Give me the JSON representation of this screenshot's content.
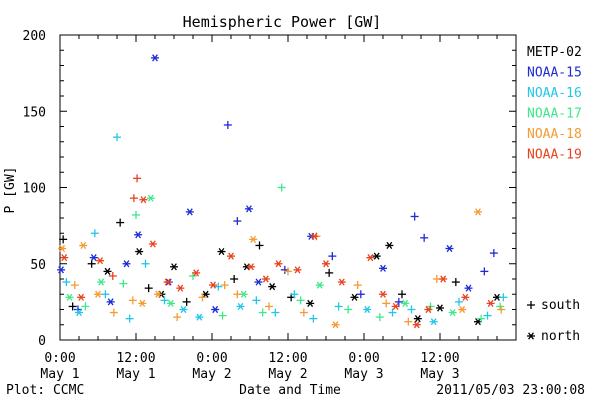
{
  "chart_data": {
    "type": "scatter",
    "title": "Hemispheric Power [GW]",
    "xlabel": "Date and Time",
    "ylabel": "P [GW]",
    "xlim": [
      "2011-05-01T00:00",
      "2011-05-04T00:00"
    ],
    "ylim": [
      0,
      200
    ],
    "yticks": [
      "0",
      "50",
      "100",
      "150",
      "200"
    ],
    "xticks": [
      {
        "time": "2011-05-01T00:00",
        "top": "0:00",
        "bottom": "May 1"
      },
      {
        "time": "2011-05-01T12:00",
        "top": "12:00",
        "bottom": "May 1"
      },
      {
        "time": "2011-05-02T00:00",
        "top": "0:00",
        "bottom": "May 2"
      },
      {
        "time": "2011-05-02T12:00",
        "top": "12:00",
        "bottom": "May 2"
      },
      {
        "time": "2011-05-03T00:00",
        "top": "0:00",
        "bottom": "May 3"
      },
      {
        "time": "2011-05-03T12:00",
        "top": "12:00",
        "bottom": "May 3"
      }
    ],
    "grid": false,
    "legend_position": "right",
    "marker_legend": [
      {
        "symbol": "+",
        "label": "south"
      },
      {
        "symbol": "*",
        "label": "north"
      }
    ],
    "series": [
      {
        "name": "METP-02",
        "color": "#000000",
        "points": [
          [
            "2011-05-01T00:30",
            66,
            "+"
          ],
          [
            "2011-05-01T02:00",
            22,
            "+"
          ],
          [
            "2011-05-01T05:00",
            50,
            "+"
          ],
          [
            "2011-05-01T07:30",
            45,
            "*"
          ],
          [
            "2011-05-01T09:30",
            77,
            "+"
          ],
          [
            "2011-05-01T12:30",
            58,
            "*"
          ],
          [
            "2011-05-01T14:00",
            34,
            "+"
          ],
          [
            "2011-05-01T16:00",
            30,
            "*"
          ],
          [
            "2011-05-01T18:00",
            48,
            "*"
          ],
          [
            "2011-05-01T20:00",
            25,
            "+"
          ],
          [
            "2011-05-01T23:00",
            30,
            "*"
          ],
          [
            "2011-05-02T01:30",
            58,
            "*"
          ],
          [
            "2011-05-02T03:30",
            40,
            "+"
          ],
          [
            "2011-05-02T05:30",
            48,
            "*"
          ],
          [
            "2011-05-02T07:30",
            62,
            "+"
          ],
          [
            "2011-05-02T09:30",
            35,
            "*"
          ],
          [
            "2011-05-02T12:30",
            28,
            "+"
          ],
          [
            "2011-05-02T15:30",
            24,
            "*"
          ],
          [
            "2011-05-02T18:30",
            44,
            "+"
          ],
          [
            "2011-05-02T22:30",
            28,
            "*"
          ],
          [
            "2011-05-03T02:00",
            55,
            "*"
          ],
          [
            "2011-05-03T04:00",
            62,
            "*"
          ],
          [
            "2011-05-03T06:00",
            30,
            "+"
          ],
          [
            "2011-05-03T08:30",
            14,
            "*"
          ],
          [
            "2011-05-03T12:00",
            21,
            "*"
          ],
          [
            "2011-05-03T14:30",
            38,
            "+"
          ],
          [
            "2011-05-03T18:00",
            12,
            "*"
          ],
          [
            "2011-05-03T21:00",
            28,
            "*"
          ]
        ]
      },
      {
        "name": "NOAA-15",
        "color": "#1c2bd6",
        "points": [
          [
            "2011-05-01T00:10",
            46,
            "*"
          ],
          [
            "2011-05-01T02:50",
            20,
            "+"
          ],
          [
            "2011-05-01T05:20",
            54,
            "*"
          ],
          [
            "2011-05-01T08:00",
            25,
            "*"
          ],
          [
            "2011-05-01T10:30",
            50,
            "*"
          ],
          [
            "2011-05-01T12:20",
            69,
            "*"
          ],
          [
            "2011-05-01T15:00",
            185,
            "*"
          ],
          [
            "2011-05-01T17:10",
            38,
            "*"
          ],
          [
            "2011-05-01T20:30",
            84,
            "*"
          ],
          [
            "2011-05-02T00:30",
            20,
            "*"
          ],
          [
            "2011-05-02T02:30",
            141,
            "+"
          ],
          [
            "2011-05-02T04:00",
            78,
            "+"
          ],
          [
            "2011-05-02T05:50",
            86,
            "*"
          ],
          [
            "2011-05-02T07:20",
            38,
            "*"
          ],
          [
            "2011-05-02T11:30",
            46,
            "+"
          ],
          [
            "2011-05-02T15:40",
            68,
            "*"
          ],
          [
            "2011-05-02T19:00",
            55,
            "+"
          ],
          [
            "2011-05-02T23:30",
            30,
            "+"
          ],
          [
            "2011-05-03T03:00",
            47,
            "*"
          ],
          [
            "2011-05-03T05:30",
            25,
            "+"
          ],
          [
            "2011-05-03T08:00",
            81,
            "+"
          ],
          [
            "2011-05-03T09:30",
            67,
            "+"
          ],
          [
            "2011-05-03T13:30",
            60,
            "*"
          ],
          [
            "2011-05-03T16:30",
            34,
            "*"
          ],
          [
            "2011-05-03T19:00",
            45,
            "+"
          ],
          [
            "2011-05-03T20:30",
            57,
            "+"
          ]
        ]
      },
      {
        "name": "NOAA-16",
        "color": "#22c6ea",
        "points": [
          [
            "2011-05-01T01:00",
            38,
            "+"
          ],
          [
            "2011-05-01T03:00",
            18,
            "*"
          ],
          [
            "2011-05-01T05:30",
            70,
            "+"
          ],
          [
            "2011-05-01T07:10",
            30,
            "+"
          ],
          [
            "2011-05-01T09:00",
            133,
            "+"
          ],
          [
            "2011-05-01T11:00",
            14,
            "+"
          ],
          [
            "2011-05-01T13:30",
            50,
            "+"
          ],
          [
            "2011-05-01T16:30",
            26,
            "+"
          ],
          [
            "2011-05-01T19:30",
            20,
            "*"
          ],
          [
            "2011-05-01T22:00",
            15,
            "*"
          ],
          [
            "2011-05-02T01:00",
            35,
            "+"
          ],
          [
            "2011-05-02T04:30",
            22,
            "*"
          ],
          [
            "2011-05-02T07:00",
            26,
            "+"
          ],
          [
            "2011-05-02T10:00",
            18,
            "+"
          ],
          [
            "2011-05-02T13:00",
            30,
            "+"
          ],
          [
            "2011-05-02T16:00",
            14,
            "+"
          ],
          [
            "2011-05-02T20:00",
            22,
            "+"
          ],
          [
            "2011-05-03T00:30",
            20,
            "*"
          ],
          [
            "2011-05-03T04:30",
            18,
            "+"
          ],
          [
            "2011-05-03T07:30",
            20,
            "+"
          ],
          [
            "2011-05-03T11:00",
            12,
            "*"
          ],
          [
            "2011-05-03T15:00",
            25,
            "+"
          ],
          [
            "2011-05-03T19:30",
            16,
            "+"
          ],
          [
            "2011-05-03T22:00",
            28,
            "+"
          ]
        ]
      },
      {
        "name": "NOAA-17",
        "color": "#3ee88c",
        "points": [
          [
            "2011-05-01T01:30",
            28,
            "*"
          ],
          [
            "2011-05-01T04:00",
            22,
            "+"
          ],
          [
            "2011-05-01T06:30",
            38,
            "*"
          ],
          [
            "2011-05-01T10:00",
            37,
            "+"
          ],
          [
            "2011-05-01T12:00",
            82,
            "+"
          ],
          [
            "2011-05-01T14:20",
            93,
            "*"
          ],
          [
            "2011-05-01T17:30",
            24,
            "*"
          ],
          [
            "2011-05-01T21:00",
            42,
            "+"
          ],
          [
            "2011-05-02T01:40",
            16,
            "+"
          ],
          [
            "2011-05-02T05:00",
            30,
            "*"
          ],
          [
            "2011-05-02T08:00",
            18,
            "+"
          ],
          [
            "2011-05-02T11:00",
            100,
            "+"
          ],
          [
            "2011-05-02T14:00",
            26,
            "+"
          ],
          [
            "2011-05-02T17:00",
            36,
            "*"
          ],
          [
            "2011-05-02T21:30",
            20,
            "+"
          ],
          [
            "2011-05-03T02:30",
            15,
            "+"
          ],
          [
            "2011-05-03T06:30",
            24,
            "*"
          ],
          [
            "2011-05-03T10:30",
            22,
            "+"
          ],
          [
            "2011-05-03T14:00",
            18,
            "*"
          ],
          [
            "2011-05-03T18:30",
            14,
            "+"
          ],
          [
            "2011-05-03T21:30",
            22,
            "+"
          ]
        ]
      },
      {
        "name": "NOAA-18",
        "color": "#f59b32",
        "points": [
          [
            "2011-05-01T00:20",
            60,
            "*"
          ],
          [
            "2011-05-01T02:20",
            36,
            "+"
          ],
          [
            "2011-05-01T03:40",
            62,
            "*"
          ],
          [
            "2011-05-01T06:00",
            30,
            "*"
          ],
          [
            "2011-05-01T08:30",
            18,
            "+"
          ],
          [
            "2011-05-01T11:30",
            26,
            "+"
          ],
          [
            "2011-05-01T13:00",
            24,
            "*"
          ],
          [
            "2011-05-01T15:30",
            30,
            "*"
          ],
          [
            "2011-05-01T18:30",
            15,
            "+"
          ],
          [
            "2011-05-01T22:30",
            28,
            "+"
          ],
          [
            "2011-05-02T02:00",
            36,
            "+"
          ],
          [
            "2011-05-02T04:00",
            30,
            "+"
          ],
          [
            "2011-05-02T06:30",
            66,
            "*"
          ],
          [
            "2011-05-02T09:00",
            22,
            "+"
          ],
          [
            "2011-05-02T12:00",
            45,
            "+"
          ],
          [
            "2011-05-02T14:30",
            18,
            "+"
          ],
          [
            "2011-05-02T16:30",
            68,
            "+"
          ],
          [
            "2011-05-02T19:30",
            10,
            "*"
          ],
          [
            "2011-05-02T23:00",
            36,
            "+"
          ],
          [
            "2011-05-03T03:30",
            24,
            "+"
          ],
          [
            "2011-05-03T07:00",
            12,
            "+"
          ],
          [
            "2011-05-03T11:30",
            40,
            "+"
          ],
          [
            "2011-05-03T15:30",
            20,
            "*"
          ],
          [
            "2011-05-03T18:00",
            84,
            "*"
          ],
          [
            "2011-05-03T21:40",
            20,
            "+"
          ]
        ]
      },
      {
        "name": "NOAA-19",
        "color": "#e8431e",
        "points": [
          [
            "2011-05-01T00:40",
            54,
            "*"
          ],
          [
            "2011-05-01T03:20",
            28,
            "*"
          ],
          [
            "2011-05-01T06:20",
            52,
            "*"
          ],
          [
            "2011-05-01T08:20",
            42,
            "+"
          ],
          [
            "2011-05-01T11:40",
            93,
            "+"
          ],
          [
            "2011-05-01T12:10",
            106,
            "+"
          ],
          [
            "2011-05-01T13:10",
            92,
            "*"
          ],
          [
            "2011-05-01T14:40",
            63,
            "*"
          ],
          [
            "2011-05-01T17:00",
            38,
            "*"
          ],
          [
            "2011-05-01T19:00",
            34,
            "*"
          ],
          [
            "2011-05-01T21:30",
            44,
            "*"
          ],
          [
            "2011-05-02T00:10",
            36,
            "*"
          ],
          [
            "2011-05-02T03:00",
            55,
            "*"
          ],
          [
            "2011-05-02T06:10",
            48,
            "*"
          ],
          [
            "2011-05-02T08:30",
            40,
            "*"
          ],
          [
            "2011-05-02T10:30",
            50,
            "*"
          ],
          [
            "2011-05-02T13:30",
            46,
            "*"
          ],
          [
            "2011-05-02T16:10",
            68,
            "*"
          ],
          [
            "2011-05-02T18:00",
            50,
            "*"
          ],
          [
            "2011-05-02T20:30",
            38,
            "*"
          ],
          [
            "2011-05-03T01:00",
            54,
            "*"
          ],
          [
            "2011-05-03T03:00",
            30,
            "*"
          ],
          [
            "2011-05-03T05:00",
            22,
            "*"
          ],
          [
            "2011-05-03T08:20",
            10,
            "*"
          ],
          [
            "2011-05-03T10:10",
            20,
            "*"
          ],
          [
            "2011-05-03T12:30",
            40,
            "*"
          ],
          [
            "2011-05-03T16:00",
            28,
            "*"
          ],
          [
            "2011-05-03T20:00",
            24,
            "*"
          ]
        ]
      }
    ]
  },
  "footer": {
    "left": "Plot: CCMC",
    "right": "2011/05/03 23:00:08"
  }
}
